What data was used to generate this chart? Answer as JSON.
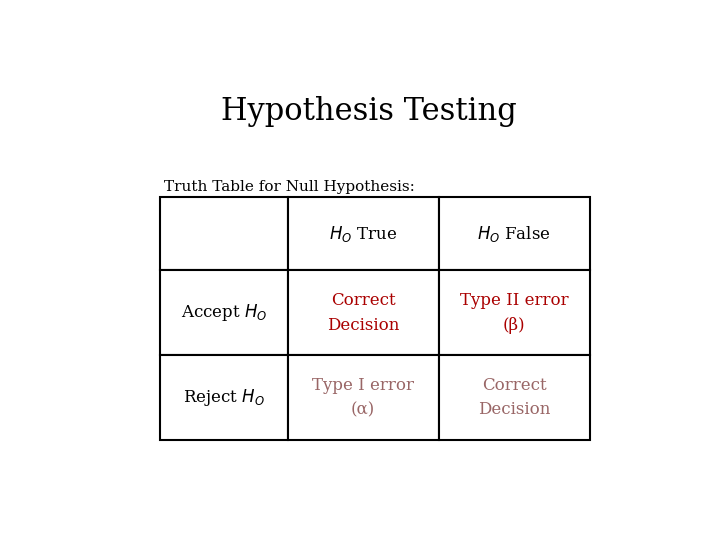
{
  "title": "Hypothesis Testing",
  "subtitle": "Truth Table for Null Hypothesis:",
  "title_fontsize": 22,
  "subtitle_fontsize": 11,
  "background_color": "#ffffff",
  "table": {
    "col_headers": [
      "$H_O$ True",
      "$H_O$ False"
    ],
    "row_headers": [
      "Accept $H_O$",
      "Reject $H_O$"
    ],
    "cells": [
      [
        "Correct\nDecision",
        "Type II error\n(β)"
      ],
      [
        "Type I error\n(α)",
        "Correct\nDecision"
      ]
    ],
    "cell_colors": [
      [
        "#aa0000",
        "#aa0000"
      ],
      [
        "#996666",
        "#996666"
      ]
    ],
    "header_color": "#000000",
    "row_header_color": "#000000"
  },
  "cell_fontsize": 12,
  "header_fontsize": 12
}
